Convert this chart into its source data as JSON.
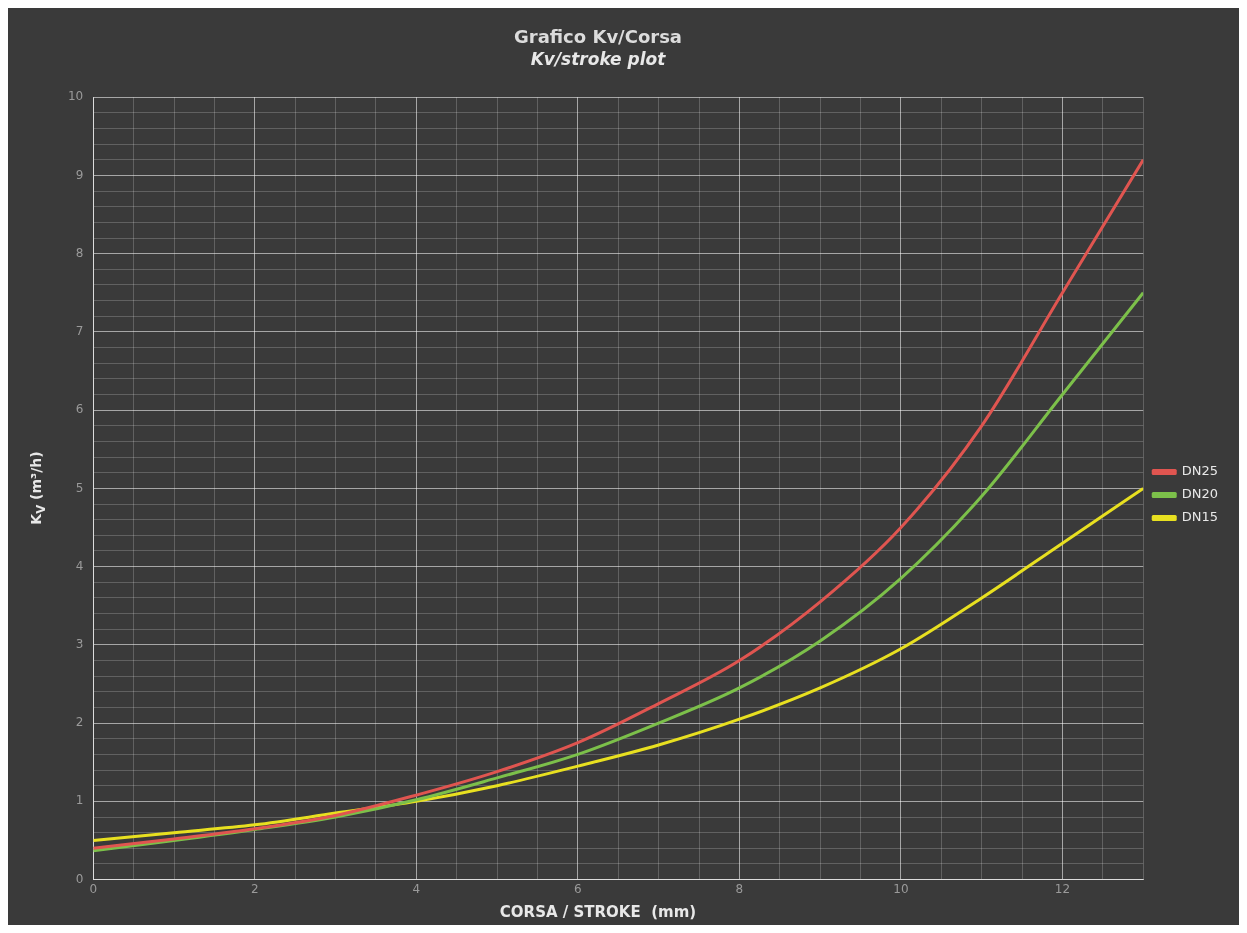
{
  "chart_data": {
    "type": "line",
    "title": "Grafico Kv/Corsa",
    "subtitle": "Kv/stroke plot",
    "xlabel": "CORSA / STROKE  (mm)",
    "ylabel": "K$_{V}$ (m³/h)",
    "x": [
      0,
      1,
      2,
      3,
      4,
      5,
      6,
      7,
      8,
      9,
      10,
      11,
      12,
      13
    ],
    "series": [
      {
        "name": "DN25",
        "color": "#e05550",
        "values": [
          0.4,
          0.52,
          0.65,
          0.82,
          1.08,
          1.38,
          1.75,
          2.25,
          2.8,
          3.55,
          4.5,
          5.8,
          7.5,
          9.2
        ]
      },
      {
        "name": "DN20",
        "color": "#7cc04a",
        "values": [
          0.37,
          0.5,
          0.64,
          0.8,
          1.02,
          1.3,
          1.6,
          2.0,
          2.45,
          3.05,
          3.85,
          4.9,
          6.2,
          7.5
        ]
      },
      {
        "name": "DN15",
        "color": "#e8e020",
        "values": [
          0.5,
          0.6,
          0.7,
          0.85,
          1.0,
          1.2,
          1.45,
          1.72,
          2.05,
          2.45,
          2.95,
          3.6,
          4.3,
          5.0
        ]
      }
    ],
    "xlim": [
      0,
      13
    ],
    "xticks": [
      0,
      {
        "value": 0.5,
        "label": null
      },
      {
        "value": 1,
        "label": null
      },
      {
        "value": 1.5,
        "label": null
      },
      2,
      {
        "value": 2.5,
        "label": null
      },
      {
        "value": 3,
        "label": null
      },
      {
        "value": 3.5,
        "label": null
      },
      4,
      {
        "value": 4.5,
        "label": null
      },
      {
        "value": 5,
        "label": null
      },
      {
        "value": 5.5,
        "label": null
      },
      6,
      {
        "value": 6.5,
        "label": null
      },
      {
        "value": 7,
        "label": null
      },
      {
        "value": 7.5,
        "label": null
      },
      8,
      {
        "value": 8.5,
        "label": null
      },
      {
        "value": 9,
        "label": null
      },
      {
        "value": 9.5,
        "label": null
      },
      10,
      {
        "value": 10.5,
        "label": null
      },
      {
        "value": 11,
        "label": null
      },
      {
        "value": 11.5,
        "label": null
      },
      12,
      {
        "value": 12.5,
        "label": null
      },
      {
        "value": 13,
        "label": null
      }
    ],
    "ylim": [
      0,
      10
    ],
    "yticks": [
      0,
      {
        "value": 0.2,
        "label": null
      },
      {
        "value": 0.4,
        "label": null
      },
      {
        "value": 0.6,
        "label": null
      },
      {
        "value": 0.8,
        "label": null
      },
      1,
      {
        "value": 1.2,
        "label": null
      },
      {
        "value": 1.4,
        "label": null
      },
      {
        "value": 1.6,
        "label": null
      },
      {
        "value": 1.8,
        "label": null
      },
      2,
      {
        "value": 2.2,
        "label": null
      },
      {
        "value": 2.4,
        "label": null
      },
      {
        "value": 2.6,
        "label": null
      },
      {
        "value": 2.8,
        "label": null
      },
      3,
      {
        "value": 3.2,
        "label": null
      },
      {
        "value": 3.4,
        "label": null
      },
      {
        "value": 3.6,
        "label": null
      },
      {
        "value": 3.8,
        "label": null
      },
      4,
      {
        "value": 4.2,
        "label": null
      },
      {
        "value": 4.4,
        "label": null
      },
      {
        "value": 4.6,
        "label": null
      },
      {
        "value": 4.8,
        "label": null
      },
      5,
      {
        "value": 5.2,
        "label": null
      },
      {
        "value": 5.4,
        "label": null
      },
      {
        "value": 5.6,
        "label": null
      },
      {
        "value": 5.8,
        "label": null
      },
      6,
      {
        "value": 6.2,
        "label": null
      },
      {
        "value": 6.4,
        "label": null
      },
      {
        "value": 6.6,
        "label": null
      },
      {
        "value": 6.8,
        "label": null
      },
      7,
      {
        "value": 7.2,
        "label": null
      },
      {
        "value": 7.4,
        "label": null
      },
      {
        "value": 7.6,
        "label": null
      },
      {
        "value": 7.8,
        "label": null
      },
      8,
      {
        "value": 8.2,
        "label": null
      },
      {
        "value": 8.4,
        "label": null
      },
      {
        "value": 8.6,
        "label": null
      },
      {
        "value": 8.8,
        "label": null
      },
      9,
      {
        "value": 9.2,
        "label": null
      },
      {
        "value": 9.4,
        "label": null
      },
      {
        "value": 9.6,
        "label": null
      },
      {
        "value": 9.8,
        "label": null
      },
      10
    ],
    "grid": true,
    "legend": "right",
    "marker": "none",
    "line_style": "solid"
  }
}
